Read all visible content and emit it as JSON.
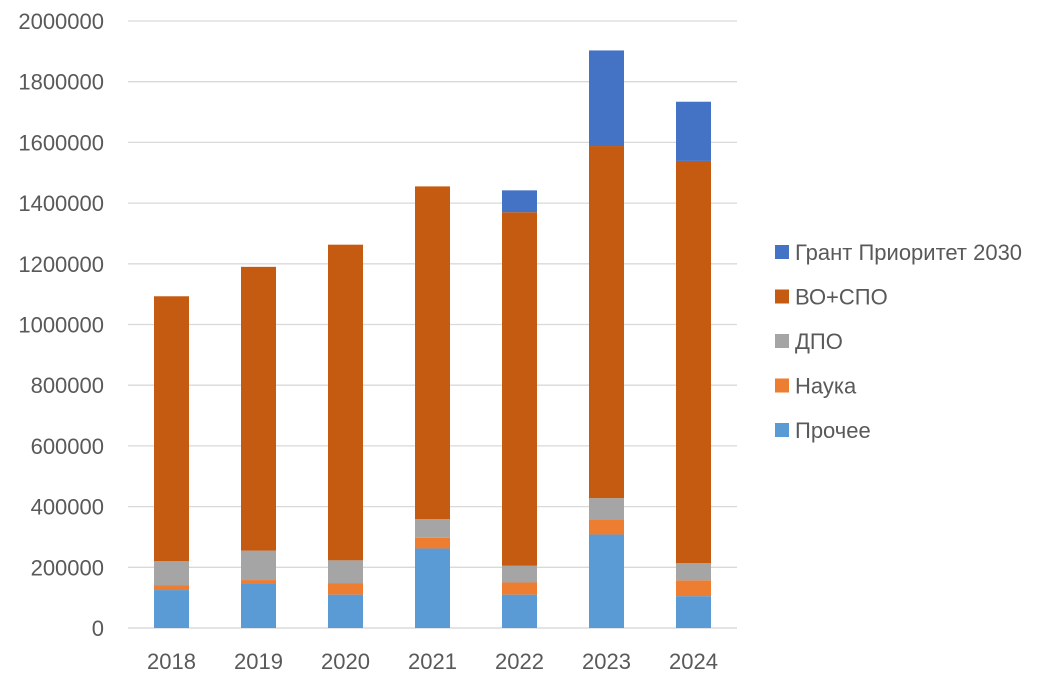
{
  "chart_data": {
    "type": "bar",
    "stacked": true,
    "categories": [
      "2018",
      "2019",
      "2020",
      "2021",
      "2022",
      "2023",
      "2024"
    ],
    "series": [
      {
        "name": "Прочее",
        "color": "#5B9BD5",
        "values": [
          125000,
          145000,
          110000,
          262000,
          110000,
          308000,
          105000
        ]
      },
      {
        "name": "Наука",
        "color": "#ED7D31",
        "values": [
          15000,
          13000,
          38000,
          35000,
          40000,
          50000,
          52000
        ]
      },
      {
        "name": "ДПО",
        "color": "#A5A5A5",
        "values": [
          80000,
          97000,
          75000,
          62000,
          55000,
          70000,
          57000
        ]
      },
      {
        "name": "ВО+СПО",
        "color": "#C55A11",
        "values": [
          873000,
          935000,
          1040000,
          1096000,
          1165000,
          1160000,
          1325000
        ]
      },
      {
        "name": "Грант Приоритет 2030",
        "color": "#4472C4",
        "values": [
          0,
          0,
          0,
          0,
          72000,
          315000,
          195000
        ]
      }
    ],
    "y_ticks": [
      "0",
      "200000",
      "400000",
      "600000",
      "800000",
      "1000000",
      "1200000",
      "1400000",
      "1600000",
      "1800000",
      "2000000"
    ],
    "ylim": [
      0,
      2000000
    ],
    "grid": true,
    "legend_position": "right",
    "legend_order": [
      "Грант Приоритет 2030",
      "ВО+СПО",
      "ДПО",
      "Наука",
      "Прочее"
    ],
    "title": "",
    "xlabel": "",
    "ylabel": ""
  }
}
